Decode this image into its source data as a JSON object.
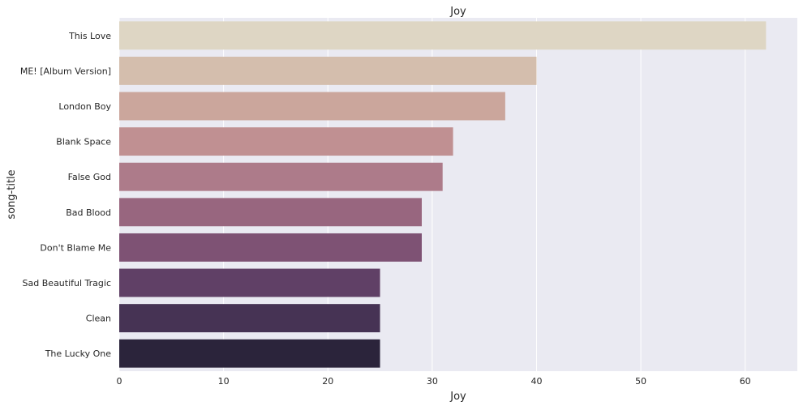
{
  "chart_data": {
    "type": "bar",
    "orientation": "horizontal",
    "title": "Joy",
    "xlabel": "Joy",
    "ylabel": "song-title",
    "categories": [
      "This Love",
      "ME! [Album Version]",
      "London Boy",
      "Blank Space",
      "False God",
      "Bad Blood",
      "Don't Blame Me",
      "Sad Beautiful Tragic",
      "Clean",
      "The Lucky One"
    ],
    "values": [
      62,
      40,
      37,
      32,
      31,
      29,
      29,
      25,
      25,
      25
    ],
    "xlim": [
      0,
      65
    ],
    "xticks": [
      0,
      10,
      20,
      30,
      40,
      50,
      60
    ],
    "grid": true,
    "background": "#eaeaf2",
    "gridline_color": "#ffffff",
    "palette": [
      "#ded6c4",
      "#d4bead",
      "#cba69c",
      "#c09092",
      "#ad7b8a",
      "#98667f",
      "#7e5274",
      "#604066",
      "#463354",
      "#2b243b"
    ]
  }
}
